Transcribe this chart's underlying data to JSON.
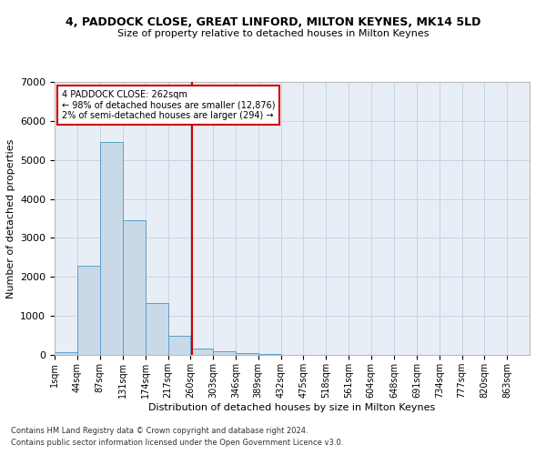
{
  "title": "4, PADDOCK CLOSE, GREAT LINFORD, MILTON KEYNES, MK14 5LD",
  "subtitle": "Size of property relative to detached houses in Milton Keynes",
  "xlabel": "Distribution of detached houses by size in Milton Keynes",
  "ylabel": "Number of detached properties",
  "footnote1": "Contains HM Land Registry data © Crown copyright and database right 2024.",
  "footnote2": "Contains public sector information licensed under the Open Government Licence v3.0.",
  "bar_color": "#c9d9e8",
  "bar_edge_color": "#5a9fc8",
  "grid_color": "#c8d4e4",
  "background_color": "#e8eef6",
  "bin_labels": [
    "1sqm",
    "44sqm",
    "87sqm",
    "131sqm",
    "174sqm",
    "217sqm",
    "260sqm",
    "303sqm",
    "346sqm",
    "389sqm",
    "432sqm",
    "475sqm",
    "518sqm",
    "561sqm",
    "604sqm",
    "648sqm",
    "691sqm",
    "734sqm",
    "777sqm",
    "820sqm",
    "863sqm"
  ],
  "bar_heights": [
    80,
    2280,
    5470,
    3450,
    1330,
    480,
    160,
    90,
    50,
    20,
    5,
    2,
    1,
    0,
    0,
    0,
    0,
    0,
    0,
    0
  ],
  "bin_starts": [
    1,
    44,
    87,
    131,
    174,
    217,
    260,
    303,
    346,
    389,
    432,
    475,
    518,
    561,
    604,
    648,
    691,
    734,
    777,
    820,
    863
  ],
  "bin_end": 906,
  "property_size": 262,
  "property_label": "4 PADDOCK CLOSE: 262sqm",
  "annotation_line1": "← 98% of detached houses are smaller (12,876)",
  "annotation_line2": "2% of semi-detached houses are larger (294) →",
  "red_line_color": "#cc0000",
  "annotation_box_color": "#ffffff",
  "annotation_box_edge": "#cc0000",
  "ylim": [
    0,
    7000
  ],
  "xlim_min": 1,
  "xlim_max": 906,
  "title_fontsize": 9,
  "subtitle_fontsize": 8,
  "ylabel_fontsize": 8,
  "xlabel_fontsize": 8,
  "tick_fontsize": 7,
  "footnote_fontsize": 6
}
